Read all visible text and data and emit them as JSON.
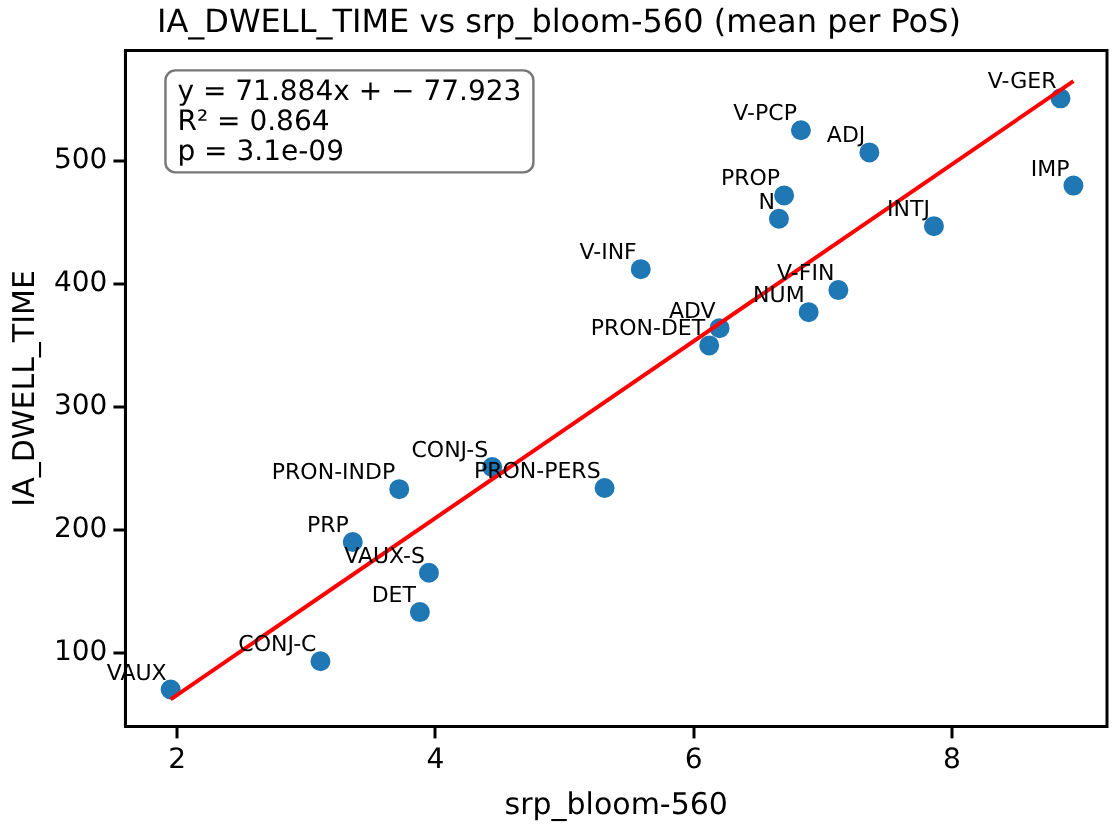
{
  "chart_data": {
    "type": "scatter",
    "title": "IA_DWELL_TIME vs srp_bloom-560 (mean per PoS)",
    "xlabel": "srp_bloom-560",
    "ylabel": "IA_DWELL_TIME",
    "xlim": [
      1.6,
      9.2
    ],
    "ylim": [
      40,
      590
    ],
    "xticks": [
      2,
      4,
      6,
      8
    ],
    "yticks": [
      100,
      200,
      300,
      400,
      500
    ],
    "grid": false,
    "legend": false,
    "marker": "circle",
    "series": [
      {
        "color": "#1f77b4",
        "x": [
          1.95,
          3.11,
          3.36,
          3.72,
          3.95,
          3.88,
          4.44,
          5.31,
          6.12,
          6.2,
          6.89,
          7.12,
          5.59,
          6.66,
          6.7,
          6.83,
          7.36,
          7.86,
          8.84,
          8.94
        ],
        "values": [
          70,
          93,
          190,
          233,
          165,
          133,
          251,
          234,
          350,
          364,
          377,
          395,
          412,
          453,
          472,
          525,
          507,
          447,
          551,
          480
        ]
      },
      {
        "type": "line",
        "color": "#ff0000",
        "line_style": "solid",
        "marker": "none",
        "x": [
          1.95,
          8.94
        ],
        "values": [
          62,
          565
        ]
      }
    ],
    "annotations": [
      "y = 71.884x + − 77.923",
      "R² = 0.864",
      "p = 3.1e-09",
      {
        "text": "VAUX",
        "x": 1.95,
        "y": 70
      },
      {
        "text": "CONJ-C",
        "x": 3.11,
        "y": 93
      },
      {
        "text": "PRP",
        "x": 3.36,
        "y": 190
      },
      {
        "text": "PRON-INDP",
        "x": 3.72,
        "y": 233
      },
      {
        "text": "VAUX-S",
        "x": 3.95,
        "y": 165
      },
      {
        "text": "DET",
        "x": 3.88,
        "y": 133
      },
      {
        "text": "CONJ-S",
        "x": 4.44,
        "y": 251
      },
      {
        "text": "PRON-PERS",
        "x": 5.31,
        "y": 234
      },
      {
        "text": "PRON-DET",
        "x": 6.12,
        "y": 350
      },
      {
        "text": "ADV",
        "x": 6.2,
        "y": 364
      },
      {
        "text": "NUM",
        "x": 6.89,
        "y": 377
      },
      {
        "text": "V-FIN",
        "x": 7.12,
        "y": 395
      },
      {
        "text": "V-INF",
        "x": 5.59,
        "y": 412
      },
      {
        "text": "N",
        "x": 6.66,
        "y": 453
      },
      {
        "text": "PROP",
        "x": 6.7,
        "y": 472
      },
      {
        "text": "V-PCP",
        "x": 6.83,
        "y": 525
      },
      {
        "text": "ADJ",
        "x": 7.36,
        "y": 507
      },
      {
        "text": "INTJ",
        "x": 7.86,
        "y": 447
      },
      {
        "text": "V-GER",
        "x": 8.84,
        "y": 551
      },
      {
        "text": "IMP",
        "x": 8.94,
        "y": 480
      }
    ]
  }
}
